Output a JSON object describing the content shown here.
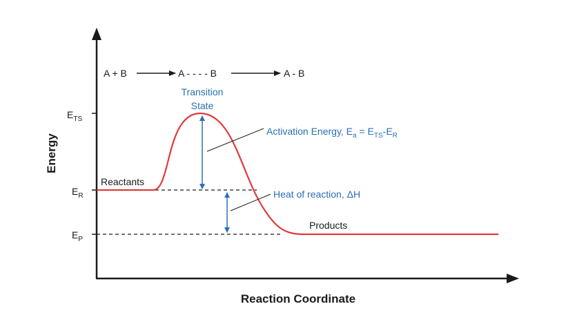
{
  "diagram": {
    "type": "energy-profile",
    "x_axis_label": "Reaction Coordinate",
    "y_axis_label": "Energy",
    "reaction_scheme": {
      "reactants": "A + B",
      "intermediate": "A - - - - B",
      "product": "A - B"
    },
    "y_ticks": [
      {
        "main": "E",
        "sub": "TS"
      },
      {
        "main": "E",
        "sub": "R"
      },
      {
        "main": "E",
        "sub": "P"
      }
    ],
    "labels": {
      "reactants": "Reactants",
      "products": "Products",
      "transition_state_line1": "Transition",
      "transition_state_line2": "State",
      "activation_energy_prefix": "Activation Energy, E",
      "activation_energy_sub_a": "a",
      "activation_energy_eq": " = E",
      "activation_energy_sub_ts": "TS",
      "activation_energy_dash": "-E",
      "activation_energy_sub_r": "R",
      "heat_of_reaction": "Heat of reaction, ΔH"
    },
    "colors": {
      "curve": "#e03a3a",
      "annotation": "#2a6fb5",
      "axis": "#1a1a1a"
    }
  }
}
